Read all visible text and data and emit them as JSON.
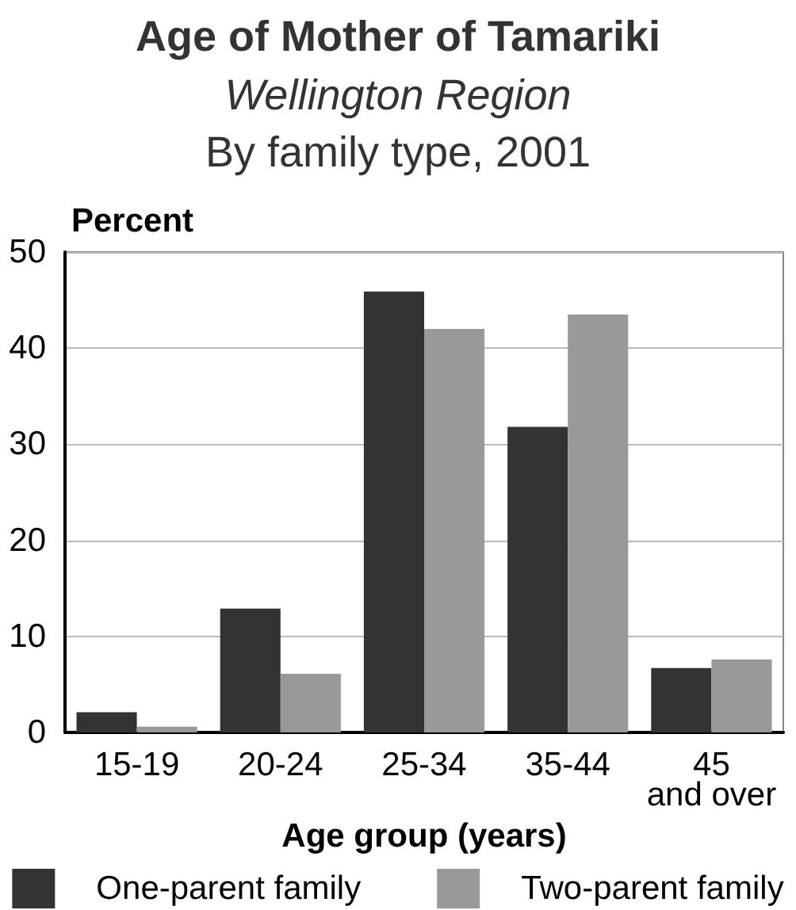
{
  "chart_data": {
    "type": "bar",
    "title": "Age of Mother of Tamariki",
    "subtitle": "Wellington Region\nBy family type, 2001",
    "xlabel": "Age group (years)",
    "ylabel": "Percent",
    "categories": [
      "15-19",
      "20-24",
      "25-34",
      "35-44",
      "45\nand over"
    ],
    "series": [
      {
        "name": "One-parent family",
        "color": "#333333",
        "values": [
          2.1,
          12.9,
          45.9,
          31.8,
          6.7
        ]
      },
      {
        "name": "Two-parent family",
        "color": "#999999",
        "values": [
          0.6,
          6.1,
          42.0,
          43.5,
          7.6
        ]
      }
    ],
    "ylim": [
      0,
      50
    ],
    "yticks": [
      0,
      10,
      20,
      30,
      40,
      50
    ],
    "grid": "y",
    "legend": "bottom"
  }
}
